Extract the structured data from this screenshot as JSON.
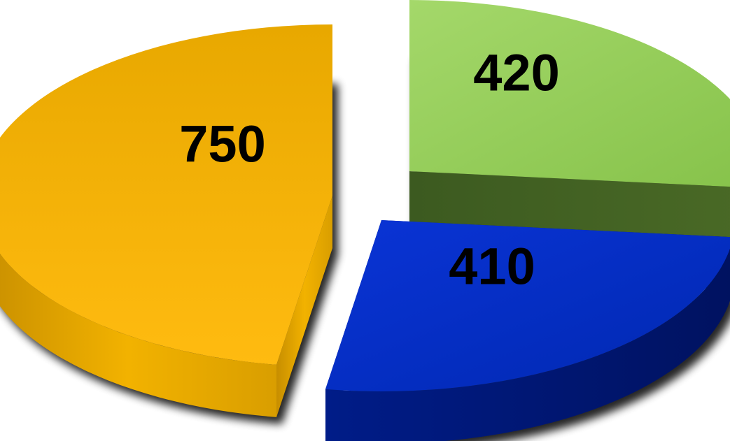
{
  "chart_data": {
    "type": "pie",
    "style": "3d-exploded",
    "title": "",
    "legend": "none",
    "slices": [
      {
        "label": "420",
        "value": 420,
        "color": "#92d050"
      },
      {
        "label": "410",
        "value": 410,
        "color": "#0033cc"
      },
      {
        "label": "750",
        "value": 750,
        "color": "#f0b400"
      }
    ]
  }
}
